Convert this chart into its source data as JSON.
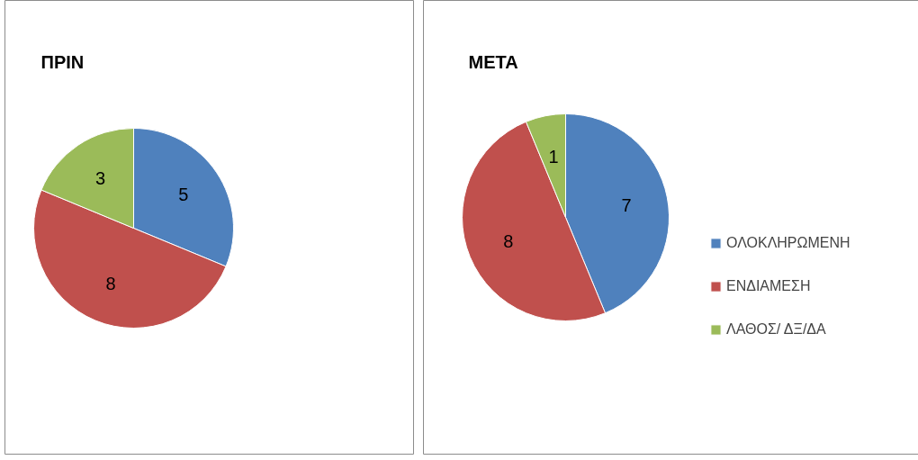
{
  "chart_data": [
    {
      "type": "pie",
      "title": "ΠΡΙΝ",
      "categories": [
        null,
        null,
        null
      ],
      "values": [
        5,
        8,
        3
      ],
      "colors": [
        "#4f81bd",
        "#c0504d",
        "#9bbb59"
      ],
      "data_labels": true,
      "legend": false
    },
    {
      "type": "pie",
      "title": "ΜΕΤΑ",
      "categories": [
        "ΟΛΟΚΛΗΡΩΜΕΝΗ",
        "ΕΝΔΙΑΜΕΣΗ",
        "ΛΑΘΟΣ/ ΔΞ/ΔΑ"
      ],
      "values": [
        7,
        8,
        1
      ],
      "colors": [
        "#4f81bd",
        "#c0504d",
        "#9bbb59"
      ],
      "data_labels": true,
      "legend": "right"
    }
  ]
}
